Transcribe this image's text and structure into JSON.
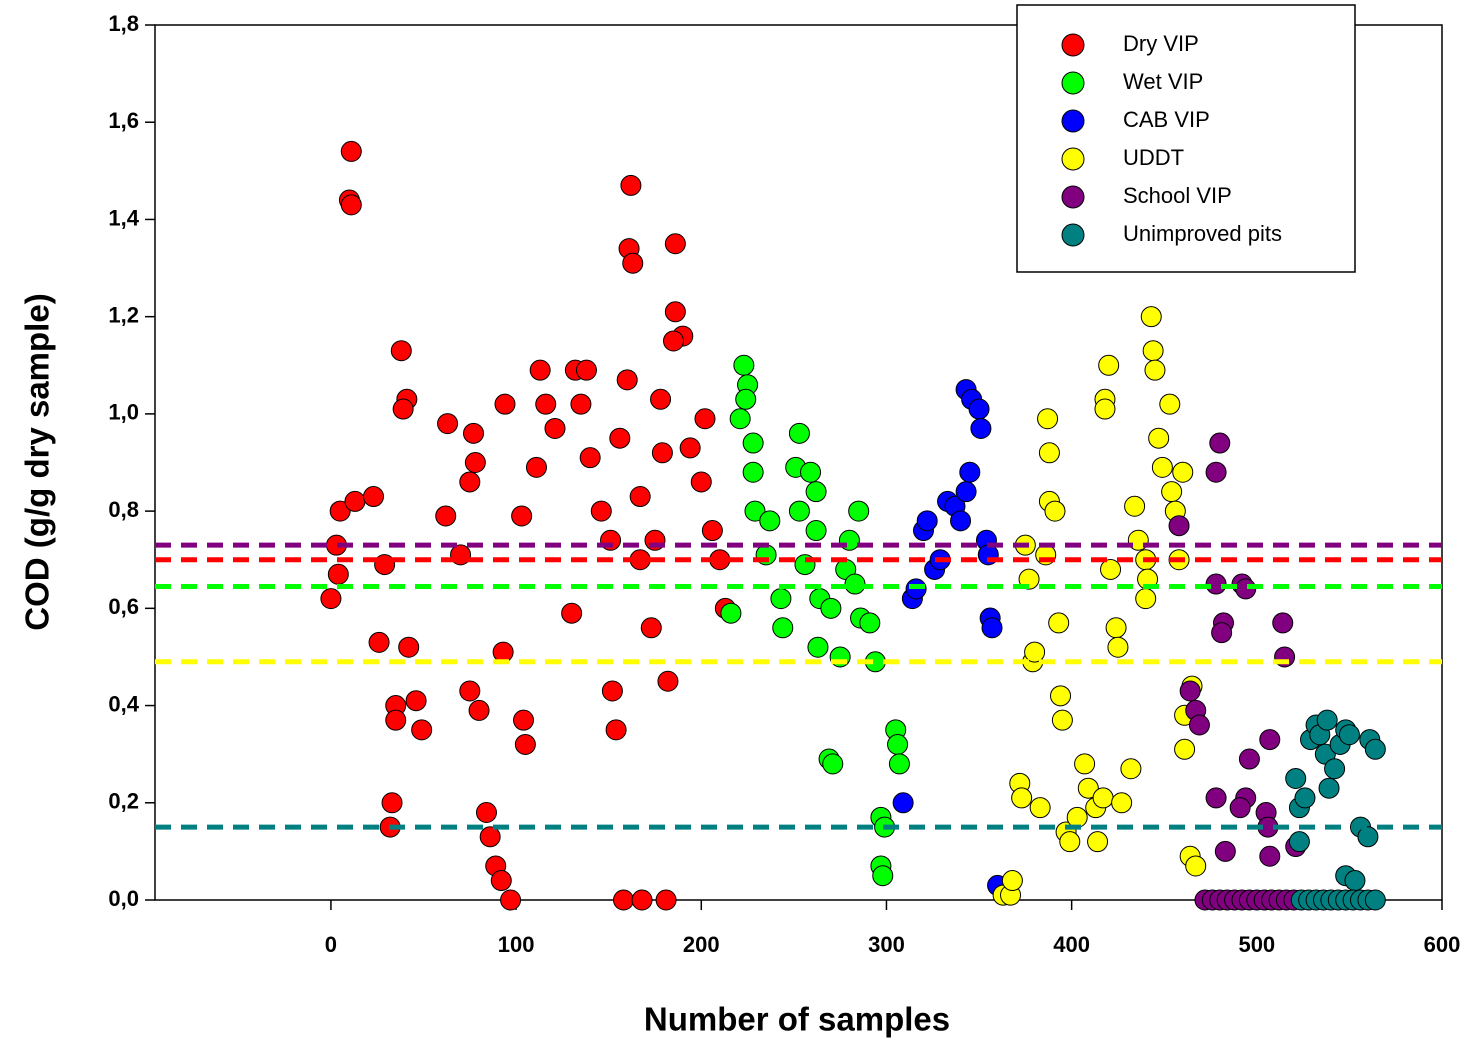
{
  "chart_data": {
    "type": "scatter",
    "x_label": "Number of samples",
    "y_label": "COD (g/g dry sample)",
    "xlim": [
      -95,
      600
    ],
    "ylim": [
      0,
      1.8
    ],
    "xticks": [
      0,
      100,
      200,
      300,
      400,
      500,
      600
    ],
    "yticks": [
      {
        "value": 0,
        "label": "0,0"
      },
      {
        "value": 0.2,
        "label": "0,2"
      },
      {
        "value": 0.4,
        "label": "0,4"
      },
      {
        "value": 0.6,
        "label": "0,6"
      },
      {
        "value": 0.8,
        "label": "0,8"
      },
      {
        "value": 1.0,
        "label": "1,0"
      },
      {
        "value": 1.2,
        "label": "1,2"
      },
      {
        "value": 1.4,
        "label": "1,4"
      },
      {
        "value": 1.6,
        "label": "1,6"
      },
      {
        "value": 1.8,
        "label": "1,8"
      }
    ],
    "legend": "upper right",
    "series": [
      {
        "name": "Dry VIP",
        "color": "#ff0000",
        "reference_line": 0.7,
        "x": [
          11,
          10,
          11,
          5,
          3,
          0,
          4,
          13,
          23,
          29,
          38,
          41,
          39,
          26,
          35,
          35,
          33,
          32,
          42,
          46,
          49,
          63,
          62,
          75,
          77,
          70,
          78,
          75,
          80,
          84,
          86,
          89,
          92,
          97,
          94,
          93,
          103,
          104,
          105,
          113,
          116,
          111,
          121,
          130,
          132,
          138,
          135,
          140,
          146,
          151,
          152,
          154,
          158,
          168,
          181,
          162,
          161,
          163,
          160,
          156,
          167,
          173,
          178,
          179,
          182,
          186,
          186,
          190,
          185,
          194,
          200,
          202,
          206,
          213,
          210,
          167,
          175
        ],
        "values": [
          1.54,
          1.44,
          1.43,
          0.8,
          0.73,
          0.62,
          0.67,
          0.82,
          0.83,
          0.69,
          1.13,
          1.03,
          1.01,
          0.53,
          0.4,
          0.37,
          0.2,
          0.15,
          0.52,
          0.41,
          0.35,
          0.98,
          0.79,
          0.86,
          0.96,
          0.71,
          0.9,
          0.43,
          0.39,
          0.18,
          0.13,
          0.07,
          0.04,
          0.0,
          1.02,
          0.51,
          0.79,
          0.37,
          0.32,
          1.09,
          1.02,
          0.89,
          0.97,
          0.59,
          1.09,
          1.09,
          1.02,
          0.91,
          0.8,
          0.74,
          0.43,
          0.35,
          0.0,
          0.0,
          0.0,
          1.47,
          1.34,
          1.31,
          1.07,
          0.95,
          0.83,
          0.56,
          1.03,
          0.92,
          0.45,
          1.35,
          1.21,
          1.16,
          1.15,
          0.93,
          0.86,
          0.99,
          0.76,
          0.6,
          0.7,
          0.7,
          0.74
        ]
      },
      {
        "name": "Wet VIP",
        "color": "#00ff00",
        "reference_line": 0.645,
        "x": [
          223,
          225,
          224,
          221,
          216,
          228,
          228,
          229,
          237,
          235,
          243,
          244,
          253,
          251,
          253,
          259,
          262,
          262,
          256,
          264,
          263,
          270,
          269,
          271,
          278,
          285,
          280,
          283,
          286,
          291,
          294,
          297,
          299,
          297,
          298,
          305,
          306,
          307,
          275
        ],
        "values": [
          1.1,
          1.06,
          1.03,
          0.99,
          0.59,
          0.94,
          0.88,
          0.8,
          0.78,
          0.71,
          0.62,
          0.56,
          0.96,
          0.89,
          0.8,
          0.88,
          0.84,
          0.76,
          0.69,
          0.62,
          0.52,
          0.6,
          0.29,
          0.28,
          0.68,
          0.8,
          0.74,
          0.65,
          0.58,
          0.57,
          0.49,
          0.17,
          0.15,
          0.07,
          0.05,
          0.35,
          0.32,
          0.28,
          0.5
        ]
      },
      {
        "name": "CAB VIP",
        "color": "#0000ff",
        "x": [
          309,
          314,
          316,
          320,
          322,
          326,
          329,
          333,
          337,
          340,
          343,
          345,
          343,
          346,
          350,
          351,
          354,
          355,
          356,
          357,
          360
        ],
        "values": [
          0.2,
          0.62,
          0.64,
          0.76,
          0.78,
          0.68,
          0.7,
          0.82,
          0.81,
          0.78,
          0.84,
          0.88,
          1.05,
          1.03,
          1.01,
          0.97,
          0.74,
          0.71,
          0.58,
          0.56,
          0.03
        ]
      },
      {
        "name": "UDDT",
        "color": "#ffff00",
        "reference_line": 0.49,
        "x": [
          363,
          367,
          368,
          372,
          373,
          375,
          377,
          379,
          380,
          383,
          386,
          387,
          388,
          388,
          391,
          393,
          394,
          395,
          397,
          399,
          403,
          407,
          409,
          413,
          414,
          417,
          420,
          418,
          418,
          421,
          424,
          425,
          427,
          432,
          434,
          436,
          440,
          441,
          440,
          443,
          444,
          445,
          447,
          449,
          453,
          454,
          456,
          458,
          460,
          461,
          461,
          464,
          467,
          465
        ],
        "values": [
          0.01,
          0.01,
          0.04,
          0.24,
          0.21,
          0.73,
          0.66,
          0.49,
          0.51,
          0.19,
          0.71,
          0.99,
          0.92,
          0.82,
          0.8,
          0.57,
          0.42,
          0.37,
          0.14,
          0.12,
          0.17,
          0.28,
          0.23,
          0.19,
          0.12,
          0.21,
          1.1,
          1.03,
          1.01,
          0.68,
          0.56,
          0.52,
          0.2,
          0.27,
          0.81,
          0.74,
          0.7,
          0.66,
          0.62,
          1.2,
          1.13,
          1.09,
          0.95,
          0.89,
          1.02,
          0.84,
          0.8,
          0.7,
          0.88,
          0.38,
          0.31,
          0.09,
          0.07,
          0.44
        ]
      },
      {
        "name": "School VIP",
        "color": "#800080",
        "reference_line": 0.73,
        "x": [
          458,
          464,
          467,
          469,
          478,
          480,
          478,
          482,
          481,
          478,
          483,
          492,
          494,
          496,
          494,
          491,
          505,
          506,
          507,
          507,
          514,
          515,
          521,
          472,
          476,
          480,
          484,
          488,
          492,
          496,
          500,
          504,
          508,
          512,
          516,
          520
        ],
        "values": [
          0.77,
          0.43,
          0.39,
          0.36,
          0.88,
          0.94,
          0.65,
          0.57,
          0.55,
          0.21,
          0.1,
          0.65,
          0.64,
          0.29,
          0.21,
          0.19,
          0.18,
          0.15,
          0.33,
          0.09,
          0.57,
          0.5,
          0.11,
          0,
          0,
          0,
          0,
          0,
          0,
          0,
          0,
          0,
          0,
          0,
          0,
          0
        ]
      },
      {
        "name": "Unimproved pits",
        "color": "#008080",
        "reference_line": 0.15,
        "x": [
          521,
          523,
          526,
          529,
          532,
          534,
          537,
          538,
          539,
          542,
          545,
          548,
          550,
          556,
          560,
          561,
          564,
          548,
          553,
          523,
          524,
          528,
          532,
          536,
          540,
          544,
          548,
          552,
          556,
          560,
          564
        ],
        "values": [
          0.25,
          0.19,
          0.21,
          0.33,
          0.36,
          0.34,
          0.3,
          0.37,
          0.23,
          0.27,
          0.32,
          0.35,
          0.34,
          0.15,
          0.13,
          0.33,
          0.31,
          0.05,
          0.04,
          0.12,
          0,
          0,
          0,
          0,
          0,
          0,
          0,
          0,
          0,
          0,
          0
        ]
      }
    ]
  }
}
